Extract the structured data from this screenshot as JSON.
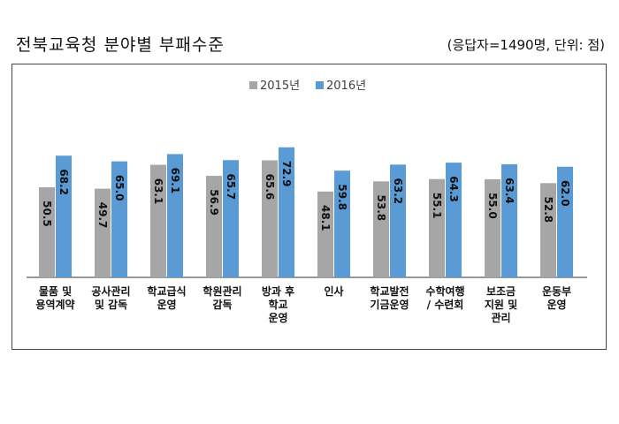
{
  "header": {
    "title": "전북교육청 분야별 부패수준",
    "note": "(응답자=1490명, 단위: 점)"
  },
  "chart_data": {
    "type": "bar",
    "categories": [
      [
        "물품 및",
        "용역계약"
      ],
      [
        "공사관리",
        "및 감독"
      ],
      [
        "학교급식",
        "운영"
      ],
      [
        "학원관리",
        "감독"
      ],
      [
        "방과 후",
        "학교",
        "운영"
      ],
      [
        "인사"
      ],
      [
        "학교발전",
        "기금운영"
      ],
      [
        "수학여행",
        "/ 수련회"
      ],
      [
        "보조금",
        "지원 및",
        "관리"
      ],
      [
        "운동부",
        "운영"
      ]
    ],
    "series": [
      {
        "name": "2015년",
        "color": "#a6a6a6",
        "values": [
          50.5,
          49.7,
          63.1,
          56.9,
          65.6,
          48.1,
          53.8,
          55.1,
          55.0,
          52.8
        ]
      },
      {
        "name": "2016년",
        "color": "#5b9bd5",
        "values": [
          68.2,
          65.0,
          69.1,
          65.7,
          72.9,
          59.8,
          63.2,
          64.3,
          63.4,
          62.0
        ]
      }
    ],
    "legend": "top-center",
    "grid": false
  }
}
